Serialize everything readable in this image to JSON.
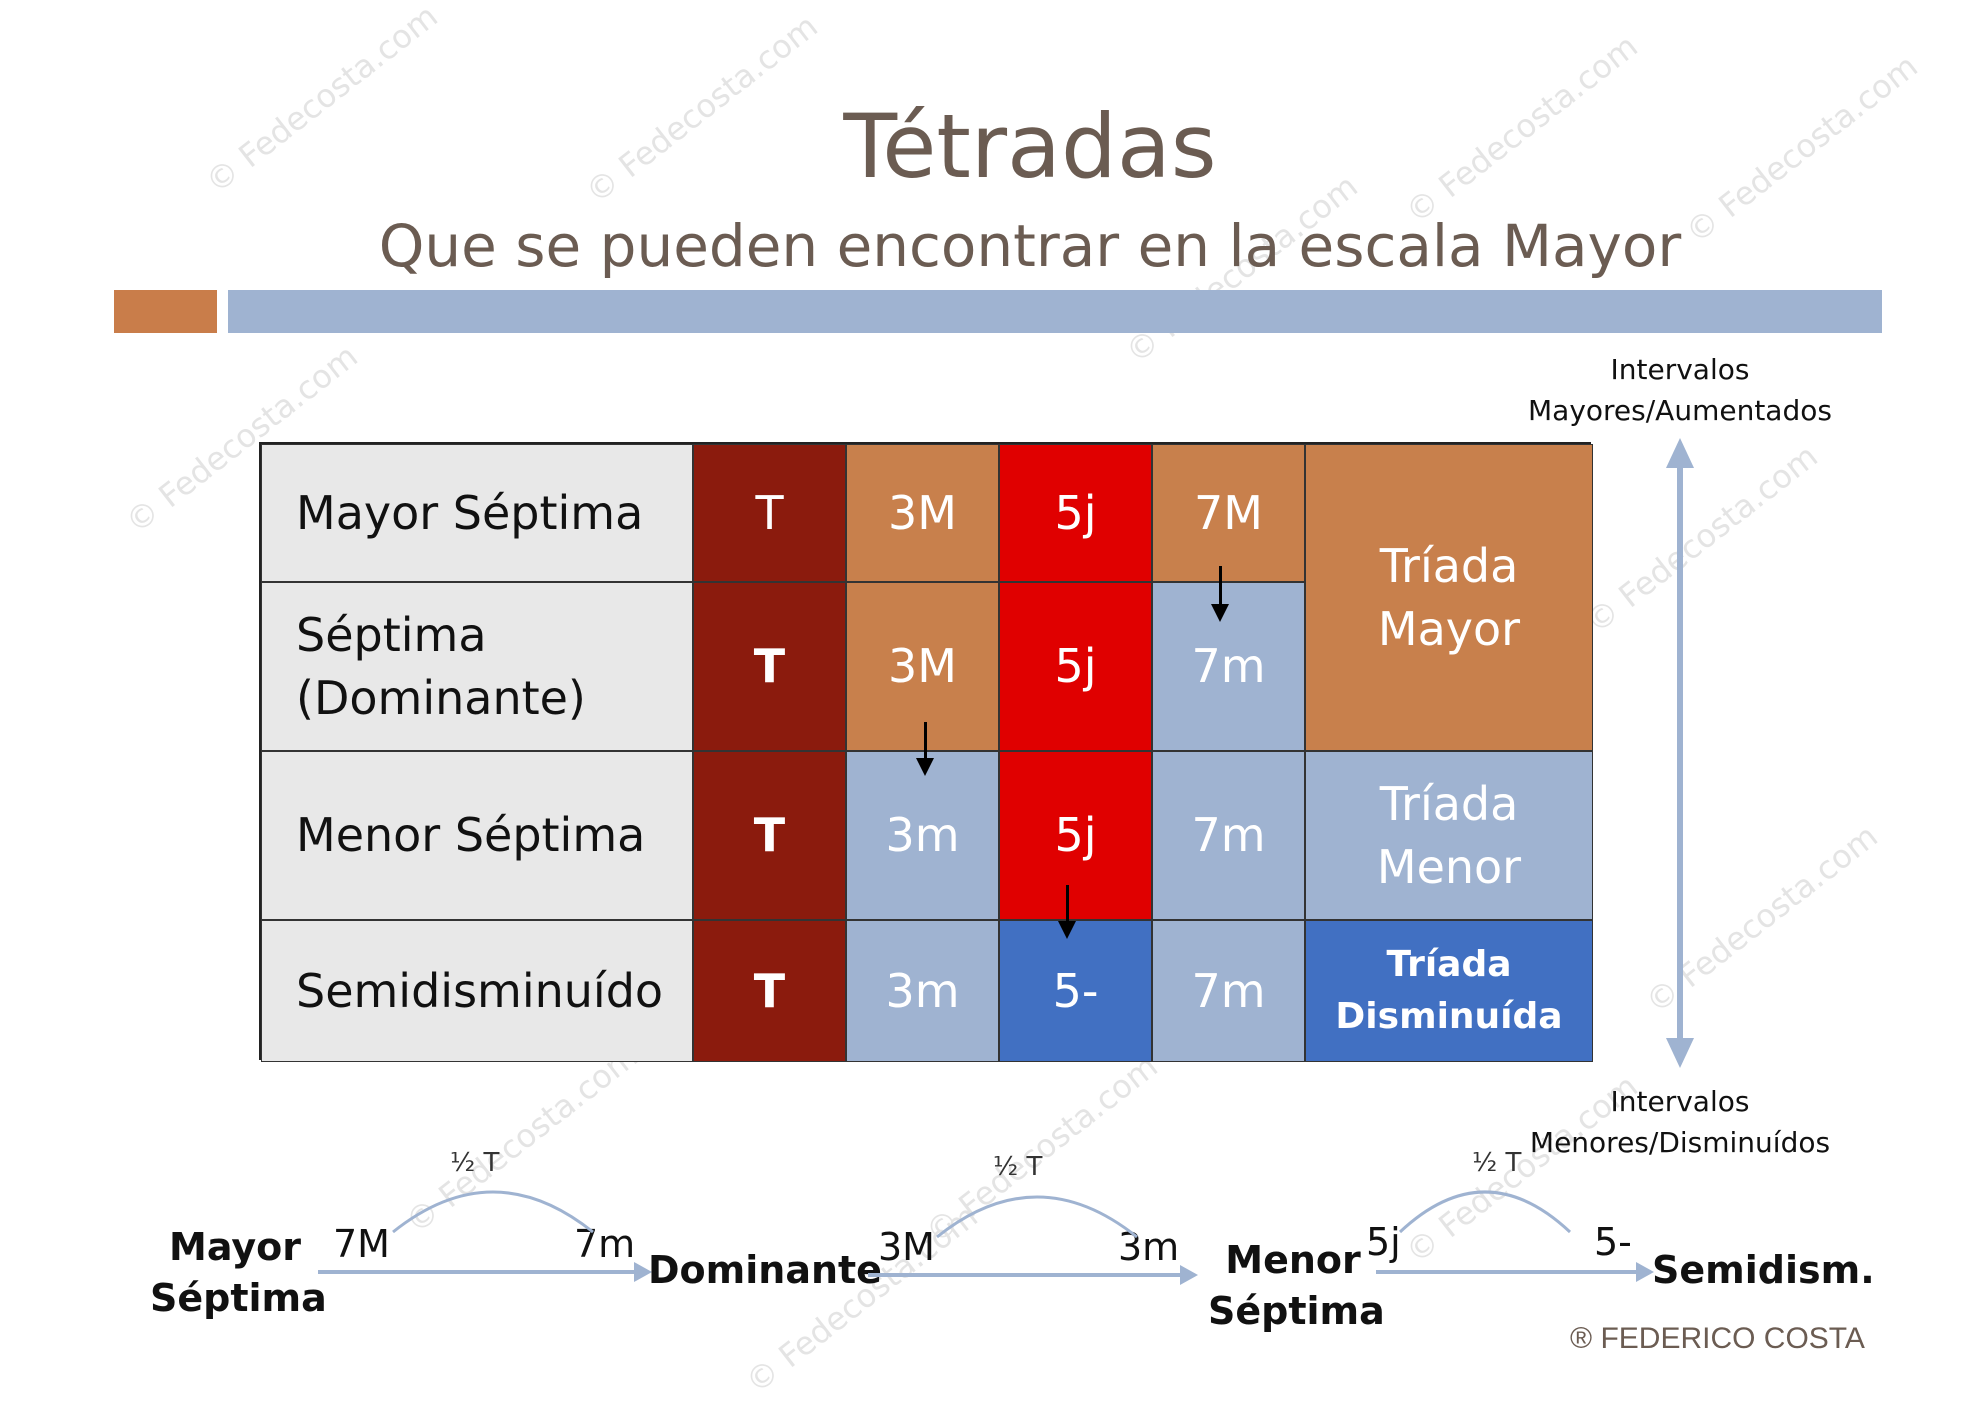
{
  "title": "Tétradas",
  "subtitle": "Que se pueden encontrar en la escala Mayor",
  "watermark": "© Fedecosta.com",
  "rows": [
    {
      "label": "Mayor Séptima",
      "cells": [
        "T",
        "3M",
        "5j",
        "7M"
      ]
    },
    {
      "label": "Séptima (Dominante)",
      "cells": [
        "T",
        "3M",
        "5j",
        "7m"
      ]
    },
    {
      "label": "Menor Séptima",
      "cells": [
        "T",
        "3m",
        "5j",
        "7m"
      ]
    },
    {
      "label": "Semidisminuído",
      "cells": [
        "T",
        "3m",
        "5-",
        "7m"
      ]
    }
  ],
  "triads": {
    "major": "Tríada Mayor",
    "minor": "Tríada Menor",
    "diminished": "Tríada Disminuída"
  },
  "side_labels": {
    "top": "Intervalos Mayores/Aumentados",
    "bottom": "Intervalos Menores/Disminuídos"
  },
  "sequence": {
    "chords": [
      "Mayor Séptima",
      "Dominante",
      "Menor Séptima",
      "Semidism."
    ],
    "steps": [
      {
        "from": "7M",
        "to": "7m",
        "interval": "½ T"
      },
      {
        "from": "3M",
        "to": "3m",
        "interval": "½ T"
      },
      {
        "from": "5j",
        "to": "5-",
        "interval": "½ T"
      }
    ]
  },
  "credit": "® FEDERICO COSTA",
  "colors": {
    "tonic": "#8b1b0d",
    "major_interval": "#c8804c",
    "perfect_fifth": "#e00000",
    "minor_interval": "#9fb3d1",
    "diminished": "#4170c2",
    "title": "#6b5c52"
  }
}
